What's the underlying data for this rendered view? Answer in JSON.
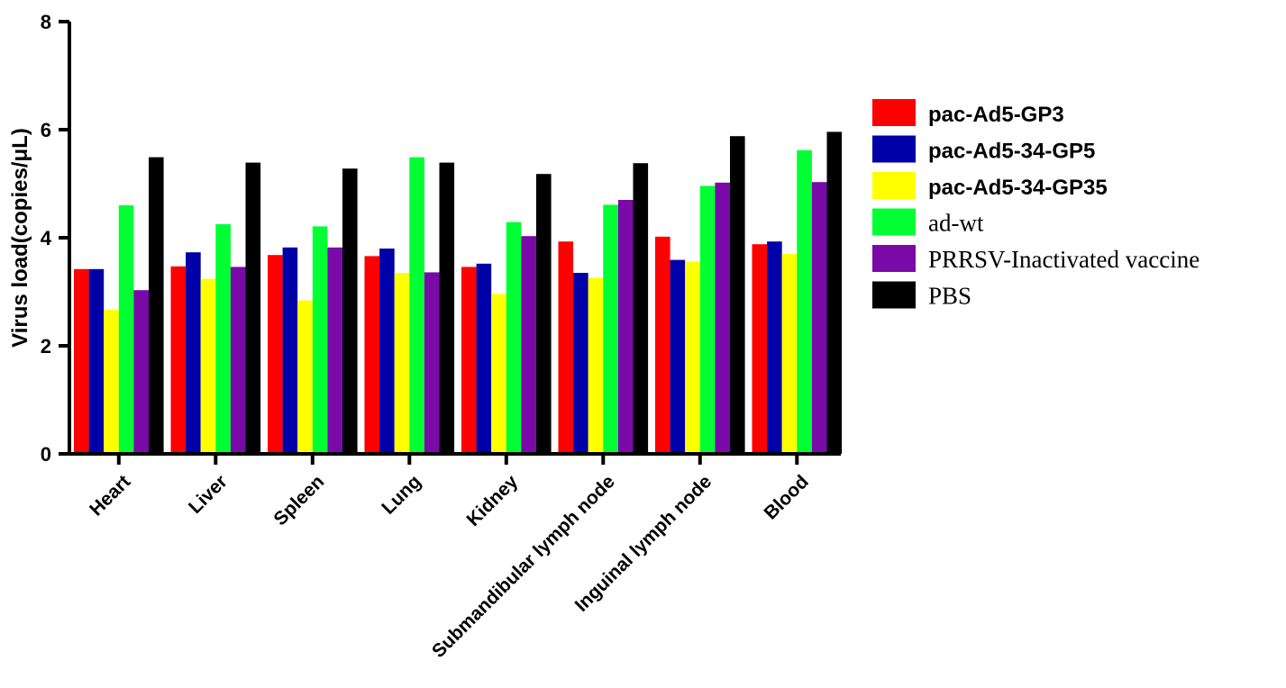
{
  "chart_data": {
    "type": "bar",
    "ylabel": "Virus load(copies/μL)",
    "xlabel": "",
    "ylim": [
      0,
      8
    ],
    "yticks": [
      0,
      2,
      4,
      6,
      8
    ],
    "grid": false,
    "legend_position": "right",
    "categories": [
      "Heart",
      "Liver",
      "Spleen",
      "Lung",
      "Kidney",
      "Submandibular lymph node",
      "Inguinal lymph node",
      "Blood"
    ],
    "series": [
      {
        "name": "pac-Ad5-GP3",
        "color": "#ff0000",
        "values": [
          3.42,
          3.47,
          3.68,
          3.66,
          3.46,
          3.93,
          4.02,
          3.88
        ]
      },
      {
        "name": "pac-Ad5-34-GP5",
        "color": "#0000a8",
        "values": [
          3.42,
          3.73,
          3.82,
          3.8,
          3.52,
          3.35,
          3.59,
          3.93
        ]
      },
      {
        "name": "pac-Ad5-34-GP35",
        "color": "#ffff00",
        "values": [
          2.67,
          3.24,
          2.84,
          3.35,
          2.96,
          3.26,
          3.56,
          3.7
        ]
      },
      {
        "name": "ad-wt",
        "color": "#00ff33",
        "values": [
          4.6,
          4.25,
          4.21,
          5.49,
          4.29,
          4.61,
          4.96,
          5.62
        ]
      },
      {
        "name": "PRRSV-Inactivated vaccine",
        "color": "#7a0aa8",
        "values": [
          3.03,
          3.46,
          3.82,
          3.36,
          4.03,
          4.7,
          5.02,
          5.03
        ]
      },
      {
        "name": "PBS",
        "color": "#000000",
        "values": [
          5.49,
          5.39,
          5.28,
          5.39,
          5.18,
          5.38,
          5.88,
          5.96
        ]
      }
    ],
    "legend_styles": [
      "sans-bold",
      "sans-bold",
      "sans-bold",
      "serif",
      "serif",
      "serif"
    ]
  }
}
